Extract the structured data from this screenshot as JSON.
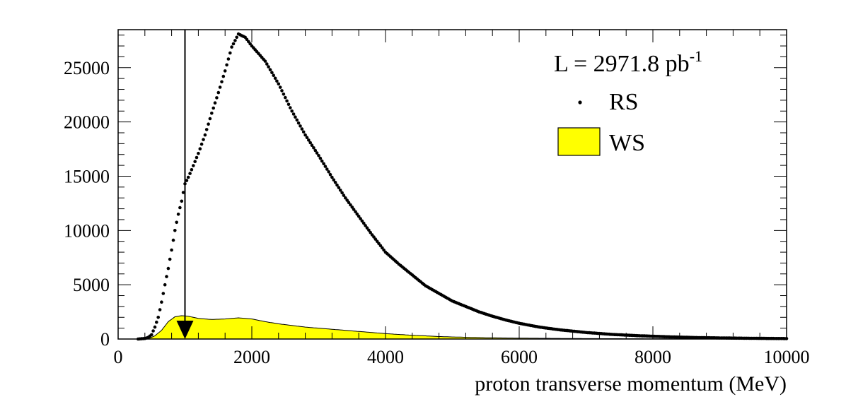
{
  "chart_data": {
    "type": "scatter",
    "title": "",
    "xlabel": "proton transverse momentum (MeV)",
    "ylabel": "",
    "xlim": [
      0,
      10000
    ],
    "ylim": [
      0,
      28500
    ],
    "x_ticks": [
      "0",
      "2000",
      "4000",
      "6000",
      "8000",
      "10000"
    ],
    "y_ticks": [
      "0",
      "5000",
      "10000",
      "15000",
      "20000",
      "25000"
    ],
    "grid": false,
    "legend_position": "top-right",
    "annotation": {
      "luminosity_prefix": "L = 2971.8 pb",
      "luminosity_sup": "-1",
      "cut_arrow_x": 1000
    },
    "series": [
      {
        "name": "RS",
        "style": "markers",
        "color": "#000000",
        "points": [
          [
            300,
            0
          ],
          [
            400,
            50
          ],
          [
            450,
            150
          ],
          [
            500,
            400
          ],
          [
            550,
            1100
          ],
          [
            600,
            2000
          ],
          [
            650,
            3400
          ],
          [
            700,
            5000
          ],
          [
            750,
            6500
          ],
          [
            800,
            8200
          ],
          [
            850,
            10000
          ],
          [
            900,
            11500
          ],
          [
            950,
            12700
          ],
          [
            1000,
            14300
          ],
          [
            1050,
            14900
          ],
          [
            1100,
            15600
          ],
          [
            1200,
            17100
          ],
          [
            1300,
            18800
          ],
          [
            1400,
            20800
          ],
          [
            1500,
            22700
          ],
          [
            1600,
            24700
          ],
          [
            1700,
            26900
          ],
          [
            1800,
            28100
          ],
          [
            1900,
            27800
          ],
          [
            2000,
            27000
          ],
          [
            2200,
            25600
          ],
          [
            2400,
            23500
          ],
          [
            2600,
            21000
          ],
          [
            2800,
            18800
          ],
          [
            3000,
            16900
          ],
          [
            3200,
            14900
          ],
          [
            3400,
            13000
          ],
          [
            3600,
            11300
          ],
          [
            3800,
            9600
          ],
          [
            4000,
            8000
          ],
          [
            4200,
            6900
          ],
          [
            4400,
            5900
          ],
          [
            4600,
            4900
          ],
          [
            4800,
            4200
          ],
          [
            5000,
            3500
          ],
          [
            5200,
            3000
          ],
          [
            5400,
            2500
          ],
          [
            5600,
            2100
          ],
          [
            5800,
            1750
          ],
          [
            6000,
            1450
          ],
          [
            6300,
            1100
          ],
          [
            6600,
            850
          ],
          [
            7000,
            600
          ],
          [
            7400,
            420
          ],
          [
            7800,
            300
          ],
          [
            8200,
            210
          ],
          [
            8600,
            140
          ],
          [
            9000,
            100
          ],
          [
            9400,
            70
          ],
          [
            10000,
            40
          ]
        ]
      },
      {
        "name": "WS",
        "style": "filled-histogram",
        "color": "#ffff00",
        "points": [
          [
            300,
            0
          ],
          [
            450,
            20
          ],
          [
            550,
            300
          ],
          [
            650,
            800
          ],
          [
            750,
            1600
          ],
          [
            850,
            2050
          ],
          [
            950,
            2150
          ],
          [
            1050,
            2100
          ],
          [
            1200,
            1900
          ],
          [
            1400,
            1800
          ],
          [
            1600,
            1850
          ],
          [
            1800,
            1950
          ],
          [
            2000,
            1850
          ],
          [
            2200,
            1600
          ],
          [
            2400,
            1400
          ],
          [
            2600,
            1250
          ],
          [
            2800,
            1100
          ],
          [
            3000,
            1000
          ],
          [
            3200,
            900
          ],
          [
            3400,
            800
          ],
          [
            3600,
            700
          ],
          [
            3800,
            600
          ],
          [
            4000,
            500
          ],
          [
            4200,
            420
          ],
          [
            4400,
            350
          ],
          [
            4600,
            290
          ],
          [
            4800,
            230
          ],
          [
            5000,
            190
          ],
          [
            5500,
            120
          ],
          [
            6000,
            80
          ],
          [
            7000,
            40
          ],
          [
            8000,
            20
          ],
          [
            9000,
            10
          ],
          [
            10000,
            5
          ]
        ]
      }
    ]
  }
}
